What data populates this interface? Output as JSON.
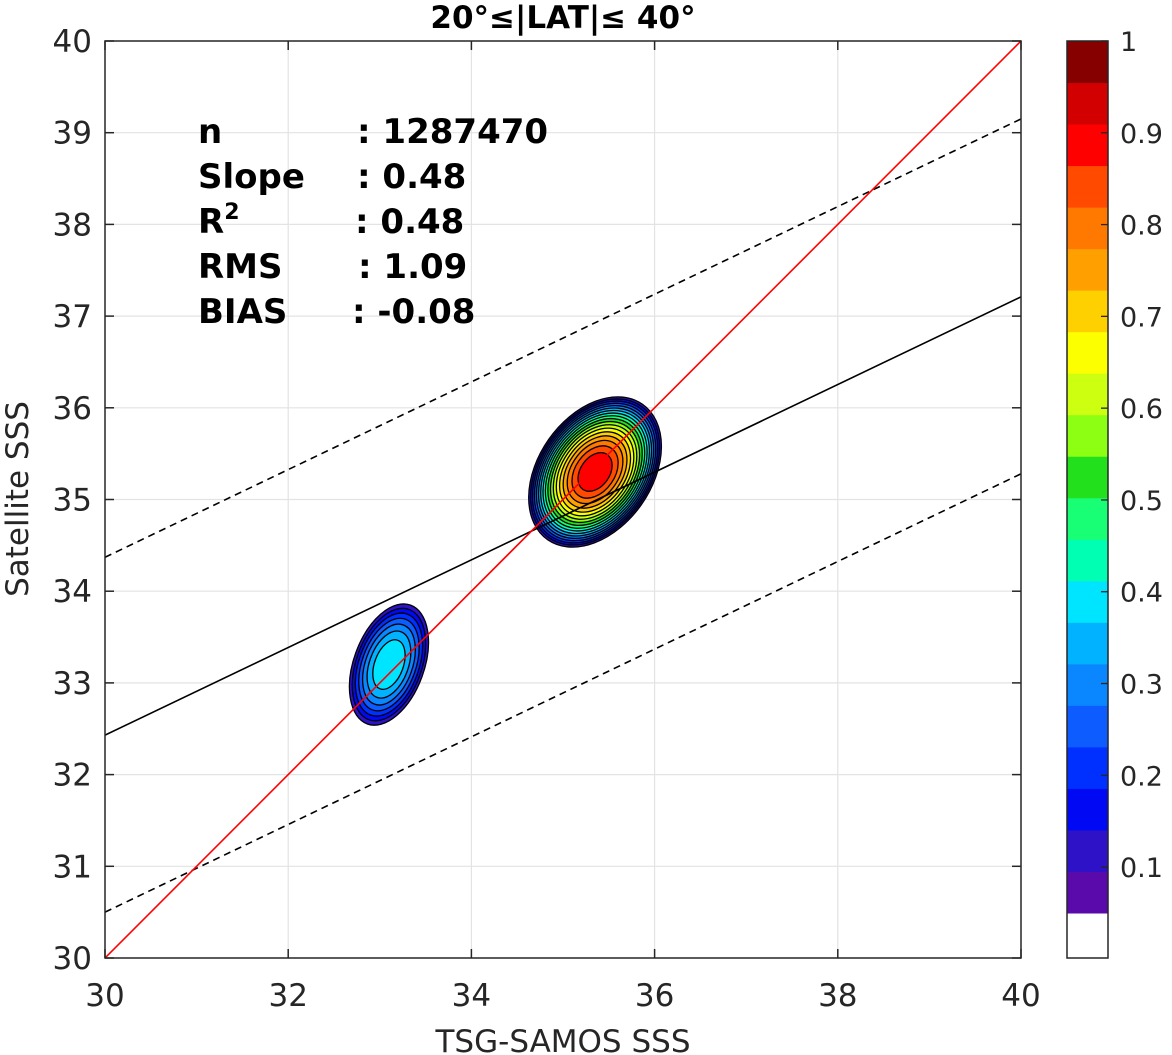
{
  "chart_data": {
    "type": "contour",
    "title": "20°≤|LAT|≤ 40°",
    "xlabel": "TSG-SAMOS SSS",
    "ylabel": "Satellite SSS",
    "xlim": [
      30,
      40
    ],
    "ylim": [
      30,
      40
    ],
    "x_ticks": [
      "30",
      "32",
      "34",
      "36",
      "38",
      "40"
    ],
    "y_ticks": [
      "30",
      "31",
      "32",
      "33",
      "34",
      "35",
      "36",
      "37",
      "38",
      "39",
      "40"
    ],
    "grid": true,
    "stats": [
      {
        "key": "n",
        "value": ": 1287470"
      },
      {
        "key": "Slope",
        "value": ": 0.48"
      },
      {
        "key": "R",
        "sup": "2",
        "value": ": 0.48"
      },
      {
        "key": "RMS",
        "value": ": 1.09"
      },
      {
        "key": "BIAS",
        "value": ": -0.08"
      }
    ],
    "lines": {
      "one_to_one": {
        "color": "#ff0000",
        "points": [
          [
            30,
            30
          ],
          [
            40,
            40
          ]
        ]
      },
      "regression": {
        "color": "#000000",
        "style": "solid",
        "points": [
          [
            30,
            32.43
          ],
          [
            40,
            37.21
          ]
        ]
      },
      "upper_bound": {
        "color": "#000000",
        "style": "dashed",
        "points": [
          [
            30,
            34.37
          ],
          [
            40,
            39.15
          ]
        ]
      },
      "lower_bound": {
        "color": "#000000",
        "style": "dashed",
        "points": [
          [
            30,
            30.5
          ],
          [
            40,
            35.28
          ]
        ]
      }
    },
    "density_clusters": [
      {
        "name": "",
        "center": [
          35.35,
          35.3
        ],
        "x_extent": [
          34.4,
          35.95
        ],
        "y_extent": [
          34.3,
          36.1
        ],
        "peak": 0.9,
        "tilt_deg": -55
      },
      {
        "name": "",
        "center": [
          33.1,
          33.2
        ],
        "x_extent": [
          32.65,
          33.65
        ],
        "y_extent": [
          32.45,
          34.05
        ],
        "peak": 0.35,
        "tilt_deg": -70
      }
    ],
    "colorbar": {
      "ticks": [
        "1",
        "0.9",
        "0.8",
        "0.7",
        "0.6",
        "0.5",
        "0.4",
        "0.3",
        "0.2",
        "0.1"
      ],
      "tick_values": [
        1,
        0.9,
        0.8,
        0.7,
        0.6,
        0.5,
        0.4,
        0.3,
        0.2,
        0.1
      ],
      "levels": [
        0,
        0.05,
        0.1,
        0.15,
        0.2,
        0.25,
        0.3,
        0.35,
        0.4,
        0.45,
        0.5,
        0.55,
        0.6,
        0.65,
        0.7,
        0.75,
        0.8,
        0.85,
        0.9,
        0.95,
        1
      ],
      "colors": [
        "#ffffff",
        "#5a0aaa",
        "#2d12c8",
        "#0008f4",
        "#0030ff",
        "#0c5cff",
        "#0a86ff",
        "#00b2ff",
        "#00e5ff",
        "#00ffb2",
        "#18ff75",
        "#22e01c",
        "#8cff12",
        "#ccff10",
        "#fbff00",
        "#ffd000",
        "#ffa000",
        "#ff7800",
        "#ff4a00",
        "#ff0000",
        "#d20000",
        "#870000"
      ]
    }
  }
}
